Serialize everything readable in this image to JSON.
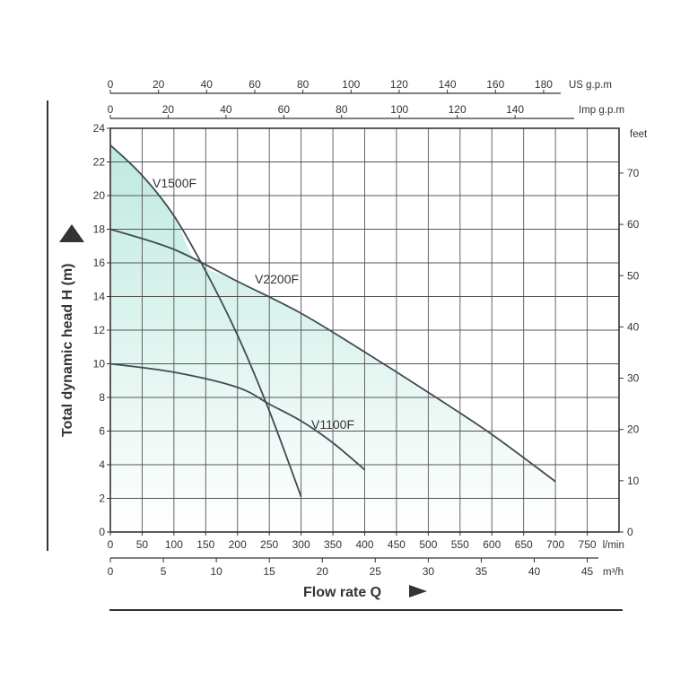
{
  "chart_data": {
    "type": "line",
    "xlabel": "Flow rate  Q",
    "ylabel": "Total dynamic head   H (m)",
    "x_unit": "l/min",
    "xlim": [
      0,
      800
    ],
    "ylim": [
      0,
      24
    ],
    "x_ticks": [
      0,
      50,
      100,
      150,
      200,
      250,
      300,
      350,
      400,
      450,
      500,
      550,
      600,
      650,
      700,
      750
    ],
    "y_ticks": [
      0,
      2,
      4,
      6,
      8,
      10,
      12,
      14,
      16,
      18,
      20,
      22,
      24
    ],
    "secondary_axes": {
      "m3h": {
        "unit": "m³/h",
        "ticks": [
          0,
          5,
          10,
          15,
          20,
          25,
          30,
          35,
          40,
          45
        ]
      },
      "feet": {
        "unit": "feet",
        "ticks": [
          0,
          10,
          20,
          30,
          40,
          50,
          60,
          70
        ]
      },
      "imp_gpm": {
        "unit": "Imp g.p.m",
        "ticks": [
          0,
          20,
          40,
          60,
          80,
          100,
          120,
          140
        ]
      },
      "us_gpm": {
        "unit": "US g.p.m",
        "ticks": [
          0,
          20,
          40,
          60,
          80,
          100,
          120,
          140,
          160,
          180
        ]
      }
    },
    "grid": true,
    "series": [
      {
        "name": "V1500F",
        "points": [
          [
            0,
            23
          ],
          [
            50,
            21.2
          ],
          [
            100,
            18.8
          ],
          [
            150,
            15.5
          ],
          [
            200,
            11.7
          ],
          [
            250,
            7.2
          ],
          [
            300,
            2.1
          ]
        ]
      },
      {
        "name": "V2200F",
        "points": [
          [
            0,
            18
          ],
          [
            100,
            16.8
          ],
          [
            200,
            14.9
          ],
          [
            300,
            13
          ],
          [
            400,
            10.7
          ],
          [
            500,
            8.3
          ],
          [
            600,
            5.8
          ],
          [
            700,
            3
          ]
        ]
      },
      {
        "name": "V1100F",
        "points": [
          [
            0,
            10
          ],
          [
            100,
            9.5
          ],
          [
            200,
            8.6
          ],
          [
            250,
            7.6
          ],
          [
            300,
            6.6
          ],
          [
            350,
            5.3
          ],
          [
            400,
            3.7
          ]
        ]
      }
    ]
  }
}
